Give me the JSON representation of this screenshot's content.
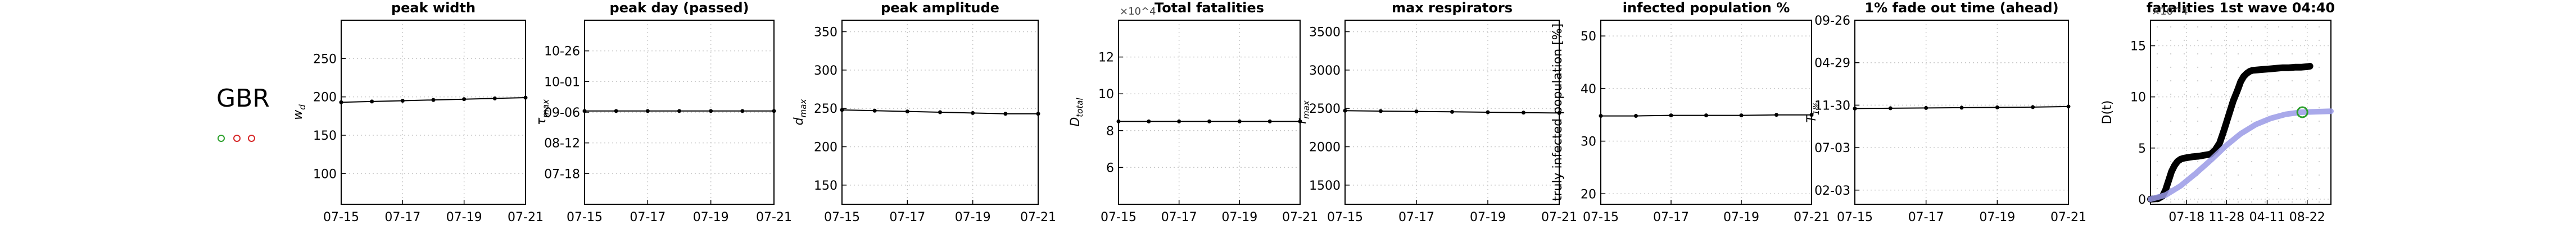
{
  "header": {
    "country": "GBR"
  },
  "indicators": [
    {
      "name": "indicator-green",
      "color": "#2ca02c"
    },
    {
      "name": "indicator-red-1",
      "color": "#d62728"
    },
    {
      "name": "indicator-red-2",
      "color": "#d62728"
    }
  ],
  "chart_data": [
    {
      "type": "line",
      "title": "peak width",
      "ylabel": "w_d",
      "x": [
        "07-15",
        "07-16",
        "07-17",
        "07-18",
        "07-19",
        "07-20",
        "07-21"
      ],
      "xticks": [
        "07-15",
        "07-17",
        "07-19",
        "07-21"
      ],
      "yticks": [
        "100",
        "150",
        "200",
        "250"
      ],
      "ytick_values": [
        100,
        150,
        200,
        250
      ],
      "ylim": [
        60,
        300
      ],
      "values": [
        193,
        194,
        195,
        196,
        197,
        198,
        199
      ],
      "grid": true
    },
    {
      "type": "line",
      "title": "peak day (passed)",
      "ylabel": "τ_max",
      "x": [
        "07-15",
        "07-16",
        "07-17",
        "07-18",
        "07-19",
        "07-20",
        "07-21"
      ],
      "xticks": [
        "07-15",
        "07-17",
        "07-19",
        "07-21"
      ],
      "yticks": [
        "07-18",
        "08-12",
        "09-06",
        "10-01",
        "10-26"
      ],
      "ytick_values": [
        0,
        25,
        50,
        75,
        100
      ],
      "ylim": [
        -25,
        125
      ],
      "values": [
        51,
        51,
        51,
        51,
        51,
        51,
        51
      ],
      "grid": true
    },
    {
      "type": "line",
      "title": "peak amplitude",
      "ylabel": "d_max",
      "x": [
        "07-15",
        "07-16",
        "07-17",
        "07-18",
        "07-19",
        "07-20",
        "07-21"
      ],
      "xticks": [
        "07-15",
        "07-17",
        "07-19",
        "07-21"
      ],
      "yticks": [
        "150",
        "200",
        "250",
        "300",
        "350"
      ],
      "ytick_values": [
        150,
        200,
        250,
        300,
        350
      ],
      "ylim": [
        125,
        365
      ],
      "values": [
        248,
        247,
        246,
        245,
        244,
        243,
        243
      ],
      "grid": true
    },
    {
      "type": "line",
      "title": "Total fatalities",
      "ylabel": "D_total",
      "scale_label": "×10^4",
      "x": [
        "07-15",
        "07-16",
        "07-17",
        "07-18",
        "07-19",
        "07-20",
        "07-21"
      ],
      "xticks": [
        "07-15",
        "07-17",
        "07-19",
        "07-21"
      ],
      "yticks": [
        "6",
        "8",
        "10",
        "12"
      ],
      "ytick_values": [
        6,
        8,
        10,
        12
      ],
      "ylim": [
        4,
        14
      ],
      "values": [
        8.5,
        8.5,
        8.5,
        8.5,
        8.5,
        8.5,
        8.5
      ],
      "grid": true
    },
    {
      "type": "line",
      "title": "max respirators",
      "ylabel": "r_max",
      "x": [
        "07-15",
        "07-16",
        "07-17",
        "07-18",
        "07-19",
        "07-20",
        "07-21"
      ],
      "xticks": [
        "07-15",
        "07-17",
        "07-19",
        "07-21"
      ],
      "yticks": [
        "1500",
        "2000",
        "2500",
        "3000",
        "3500"
      ],
      "ytick_values": [
        1500,
        2000,
        2500,
        3000,
        3500
      ],
      "ylim": [
        1250,
        3650
      ],
      "values": [
        2470,
        2465,
        2460,
        2455,
        2450,
        2445,
        2440
      ],
      "grid": true
    },
    {
      "type": "line",
      "title": "infected population %",
      "ylabel": "truly infected population [%]",
      "x": [
        "07-15",
        "07-16",
        "07-17",
        "07-18",
        "07-19",
        "07-20",
        "07-21"
      ],
      "xticks": [
        "07-15",
        "07-17",
        "07-19",
        "07-21"
      ],
      "yticks": [
        "20",
        "30",
        "40",
        "50"
      ],
      "ytick_values": [
        20,
        30,
        40,
        50
      ],
      "ylim": [
        18,
        53
      ],
      "values": [
        34.8,
        34.8,
        34.9,
        34.9,
        34.9,
        35.0,
        35.0
      ],
      "grid": true
    },
    {
      "type": "line",
      "title": "1% fade out time (ahead)",
      "ylabel": "T_1%",
      "x": [
        "07-15",
        "07-16",
        "07-17",
        "07-18",
        "07-19",
        "07-20",
        "07-21"
      ],
      "xticks": [
        "07-15",
        "07-17",
        "07-19",
        "07-21"
      ],
      "yticks": [
        "02-03",
        "07-03",
        "11-30",
        "04-29",
        "09-26"
      ],
      "ytick_values": [
        0,
        150,
        300,
        450,
        600
      ],
      "ylim": [
        -50,
        600
      ],
      "values": [
        288,
        289,
        290,
        291,
        292,
        293,
        295
      ],
      "grid": true
    },
    {
      "type": "line",
      "title": "fatalities 1st wave 04:40",
      "ylabel": "D(t)",
      "scale_label": "×10^4",
      "xticks": [
        "07-18",
        "11-28",
        "04-11",
        "08-22"
      ],
      "xtick_values": [
        120,
        253,
        388,
        521
      ],
      "yticks": [
        "0",
        "5",
        "10",
        "15"
      ],
      "ytick_values": [
        0,
        5,
        10,
        15
      ],
      "xlim": [
        0,
        600
      ],
      "ylim": [
        -0.5,
        17.5
      ],
      "series": [
        {
          "style": "observed",
          "color": "#000000",
          "x": [
            0,
            25,
            40,
            50,
            60,
            70,
            80,
            90,
            100,
            110,
            120,
            140,
            160,
            180,
            200,
            215,
            230,
            245,
            260,
            275,
            290,
            300,
            310,
            320,
            330,
            340,
            360,
            380,
            400,
            420,
            440,
            460,
            480,
            500,
            520,
            530
          ],
          "y": [
            0,
            0.05,
            0.3,
            0.9,
            1.8,
            2.7,
            3.3,
            3.7,
            3.9,
            4.0,
            4.05,
            4.15,
            4.2,
            4.3,
            4.4,
            4.8,
            5.5,
            6.8,
            8.2,
            9.6,
            10.7,
            11.5,
            12.0,
            12.3,
            12.5,
            12.6,
            12.65,
            12.7,
            12.75,
            12.8,
            12.85,
            12.85,
            12.9,
            12.9,
            12.95,
            13.0
          ]
        },
        {
          "style": "model",
          "color": "#9a9ae6",
          "x": [
            0,
            50,
            100,
            150,
            200,
            250,
            300,
            350,
            400,
            450,
            500,
            550,
            600
          ],
          "y": [
            0,
            0.4,
            1.3,
            2.5,
            3.8,
            5.2,
            6.4,
            7.3,
            7.9,
            8.3,
            8.5,
            8.55,
            8.6
          ]
        }
      ],
      "marker": {
        "x": 505,
        "y": 8.5,
        "color": "#2ca02c"
      },
      "grid": true
    }
  ]
}
